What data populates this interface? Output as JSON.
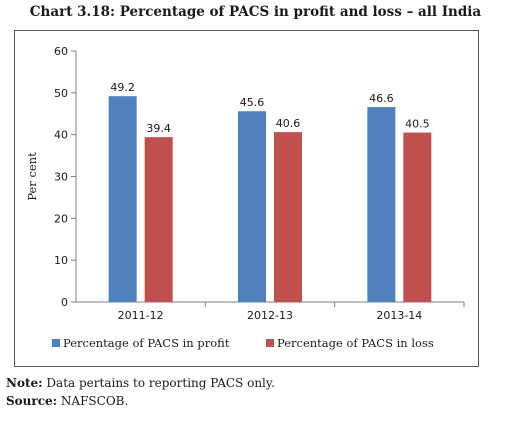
{
  "title": "Chart 3.18: Percentage of PACS in profit and loss – all India",
  "note_label": "Note:",
  "note_text": "Data pertains to reporting PACS only.",
  "source_label": "Source:",
  "source_text": "NAFSCOB.",
  "chart_data": {
    "type": "bar",
    "categories": [
      "2011-12",
      "2012-13",
      "2013-14"
    ],
    "series": [
      {
        "name": "Percentage of PACS in profit",
        "values": [
          49.2,
          45.6,
          46.6
        ],
        "color": "#4f81bd"
      },
      {
        "name": "Percentage of PACS in loss",
        "values": [
          39.4,
          40.6,
          40.5
        ],
        "color": "#c0504d"
      }
    ],
    "ylabel": "Per cent",
    "ylim": [
      0,
      60
    ],
    "yticks": [
      0,
      10,
      20,
      30,
      40,
      50,
      60
    ],
    "grid": false,
    "legend": "bottom"
  }
}
